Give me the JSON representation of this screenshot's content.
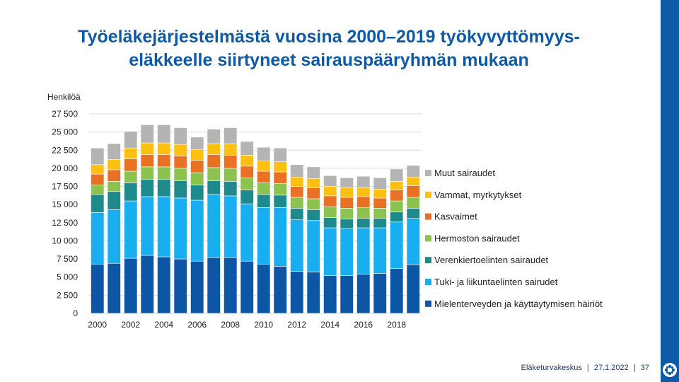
{
  "slide": {
    "title_line1": "Työeläkejärjestelmästä vuosina 2000–2019 työkyvyttömyys-",
    "title_line2": "eläkkeelle siirtyneet sairauspääryhmän mukaan",
    "footer_org": "Eläketurvakeskus",
    "footer_sep": "|",
    "footer_date": "27.1.2022",
    "footer_page": "37",
    "accent_color": "#0d5aa7"
  },
  "chart_data": {
    "type": "bar",
    "stacked": true,
    "ylabel": "Henkilöä",
    "ylim": [
      0,
      27500
    ],
    "ytick_values": [
      0,
      2500,
      5000,
      7500,
      10000,
      12500,
      15000,
      17500,
      20000,
      22500,
      25000,
      27500
    ],
    "ytick_labels": [
      "0",
      "2 500",
      "5 000",
      "7 500",
      "10 000",
      "12 500",
      "15 000",
      "17 500",
      "20 000",
      "22 500",
      "25 000",
      "27 500"
    ],
    "grid": true,
    "legend_position": "right",
    "categories": [
      "2000",
      "2001",
      "2002",
      "2003",
      "2004",
      "2005",
      "2006",
      "2007",
      "2008",
      "2009",
      "2010",
      "2011",
      "2012",
      "2013",
      "2014",
      "2015",
      "2016",
      "2017",
      "2018",
      "2019"
    ],
    "xtick_labels": [
      "2000",
      "2002",
      "2004",
      "2006",
      "2008",
      "2010",
      "2012",
      "2014",
      "2016",
      "2018"
    ],
    "series": [
      {
        "name": "Mielenterveyden ja käyttäytymisen häiriöt",
        "color": "#0d56a6",
        "values": [
          6800,
          6900,
          7600,
          8000,
          7800,
          7500,
          7200,
          7700,
          7700,
          7200,
          6800,
          6500,
          5800,
          5700,
          5200,
          5200,
          5400,
          5500,
          6200,
          6700
        ]
      },
      {
        "name": "Tuki- ja liikuntaelinten sairudet",
        "color": "#18aef0",
        "values": [
          7100,
          7400,
          7900,
          8100,
          8300,
          8400,
          8400,
          8700,
          8500,
          7900,
          7800,
          8100,
          7100,
          7100,
          6600,
          6500,
          6400,
          6300,
          6400,
          6400
        ]
      },
      {
        "name": "Verenkiertoelinten sairaudet",
        "color": "#1e8a8c",
        "values": [
          2500,
          2500,
          2500,
          2400,
          2400,
          2400,
          2100,
          1900,
          2000,
          1900,
          1800,
          1700,
          1600,
          1500,
          1400,
          1300,
          1300,
          1300,
          1400,
          1400
        ]
      },
      {
        "name": "Hermoston sairaudet",
        "color": "#8cc34e",
        "values": [
          1300,
          1400,
          1600,
          1700,
          1700,
          1700,
          1700,
          1800,
          1800,
          1700,
          1600,
          1600,
          1500,
          1500,
          1500,
          1500,
          1500,
          1400,
          1500,
          1500
        ]
      },
      {
        "name": "Kasvaimet",
        "color": "#e87124",
        "values": [
          1500,
          1600,
          1700,
          1700,
          1700,
          1700,
          1700,
          1800,
          1800,
          1600,
          1600,
          1600,
          1500,
          1500,
          1500,
          1500,
          1500,
          1400,
          1500,
          1600
        ]
      },
      {
        "name": "Vammat, myrkytykset",
        "color": "#fdc010",
        "values": [
          1300,
          1400,
          1500,
          1600,
          1600,
          1600,
          1500,
          1500,
          1600,
          1500,
          1400,
          1400,
          1300,
          1300,
          1300,
          1300,
          1200,
          1200,
          1200,
          1200
        ]
      },
      {
        "name": "Muut sairaudet",
        "color": "#b4b4b4",
        "values": [
          2300,
          2200,
          2300,
          2500,
          2500,
          2300,
          1700,
          2000,
          2200,
          1900,
          1900,
          1900,
          1700,
          1600,
          1500,
          1400,
          1600,
          1600,
          1700,
          1600
        ]
      }
    ],
    "legend_order": [
      6,
      5,
      4,
      3,
      2,
      1,
      0
    ]
  }
}
